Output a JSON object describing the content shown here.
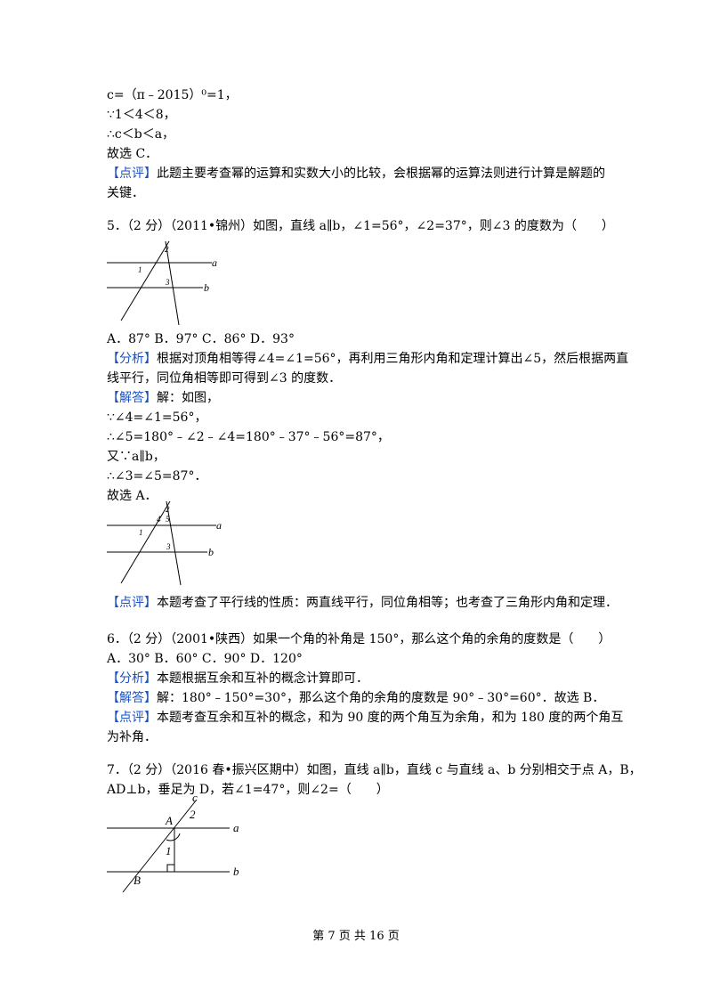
{
  "lines": {
    "l01": "c=（π﹣2015）⁰=1，",
    "l02": "∵1＜4＜8，",
    "l03": "∴c＜b＜a，",
    "l04": "故选 C．",
    "l05_tag": "【点评】",
    "l05": "此题主要考查幂的运算和实数大小的比较，会根据幂的运算法则进行计算是解题的",
    "l06": "关键．",
    "l07": "5．（2 分）（2011•锦州）如图，直线 a∥b，∠1=56°，∠2=37°，则∠3 的度数为（　　）",
    "l08": "A．87°  B．97°  C．86°  D．93°",
    "l09_tag": "【分析】",
    "l09": "根据对顶角相等得∠4=∠1=56°，再利用三角形内角和定理计算出∠5，然后根据两直",
    "l10": "线平行，同位角相等即可得到∠3 的度数．",
    "l11_tag": "【解答】",
    "l11": "解：如图，",
    "l12": "∵∠4=∠1=56°，",
    "l13": "∴∠5=180°﹣∠2﹣∠4=180°﹣37°﹣56°=87°，",
    "l14": "又∵a∥b，",
    "l15": "∴∠3=∠5=87°．",
    "l16": "故选 A．",
    "l17_tag": "【点评】",
    "l17": "本题考查了平行线的性质：两直线平行，同位角相等；也考查了三角形内角和定理．",
    "l18": "6．（2 分）（2001•陕西）如果一个角的补角是 150°，那么这个角的余角的度数是（　　）",
    "l19": "A．30°  B．60°  C．90°  D．120°",
    "l20_tag": "【分析】",
    "l20": "本题根据互余和互补的概念计算即可．",
    "l21_tag": "【解答】",
    "l21": "解：180°﹣150°=30°，那么这个角的余角的度数是 90°﹣30°=60°．故选 B．",
    "l22_tag": "【点评】",
    "l22": "本题考查互余和互补的概念，和为 90 度的两个角互为余角，和为 180 度的两个角互",
    "l23": "为补角．",
    "l24": "7．（2 分）（2016 春•振兴区期中）如图，直线 a∥b，直线 c 与直线 a、b 分别相交于点 A，B，",
    "l25": "AD⊥b，垂足为 D，若∠1=47°，则∠2=（　　）"
  },
  "figures": {
    "fig1": {
      "a": "a",
      "b": "b",
      "n1": "1",
      "n2": "2",
      "n3": "3"
    },
    "fig2": {
      "a": "a",
      "b": "b",
      "n1": "1",
      "n2": "2",
      "n3": "3",
      "n4": "4",
      "n5": "5"
    },
    "fig3": {
      "a": "a",
      "b": "b",
      "c": "c",
      "A": "A",
      "B": "B",
      "n1": "1",
      "n2": "2"
    }
  },
  "footer": "第 7 页 共 16 页",
  "colors": {
    "tag": "#1a52c4"
  }
}
